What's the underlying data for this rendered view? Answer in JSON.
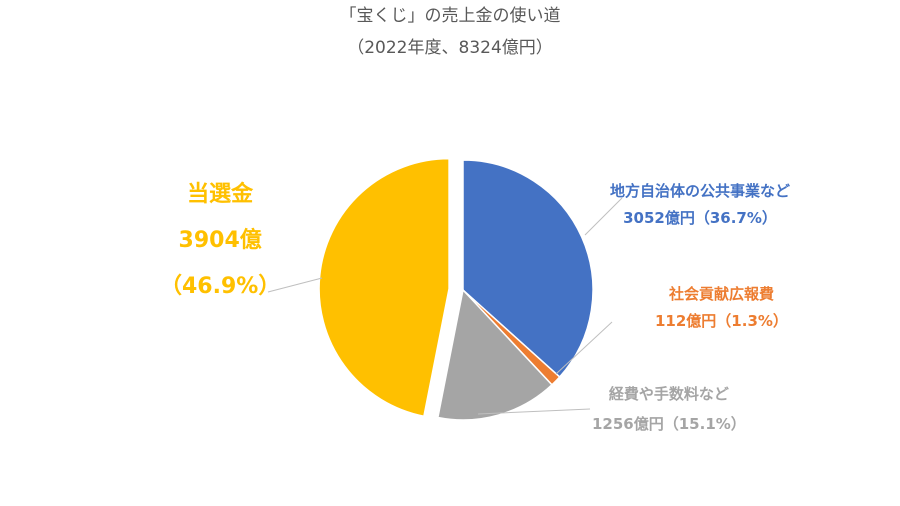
{
  "chart_data": {
    "type": "pie",
    "title": "「宝くじ」の売上金の使い道",
    "subtitle": "（2022年度、8324億円）",
    "start_angle": "12 o'clock, clockwise",
    "slices": [
      {
        "name": "地方自治体の公共事業など",
        "amount_label": "3052億円（36.7%）",
        "value": 3052,
        "percent": 36.7,
        "color": "#4472C4"
      },
      {
        "name": "社会貢献広報費",
        "amount_label": "112億円（1.3%）",
        "value": 112,
        "percent": 1.3,
        "color": "#ED7D31"
      },
      {
        "name": "経費や手数料など",
        "amount_label": "1256億円（15.1%）",
        "value": 1256,
        "percent": 15.1,
        "color": "#A5A5A5"
      },
      {
        "name": "当選金",
        "amount_label": "3904億",
        "percent_label": "（46.9%）",
        "value": 3904,
        "percent": 46.9,
        "color": "#FFC000",
        "exploded": true
      }
    ]
  }
}
